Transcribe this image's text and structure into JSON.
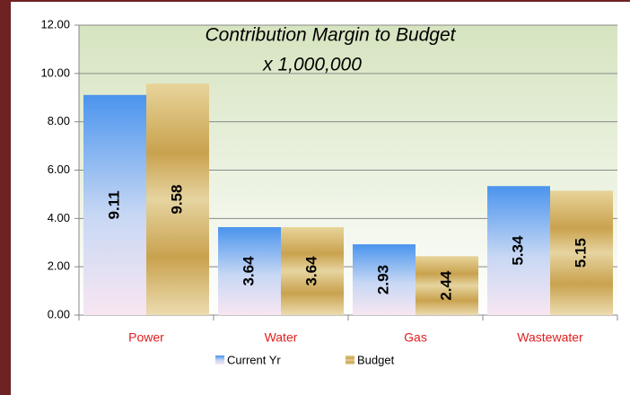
{
  "chart_data": {
    "type": "bar",
    "title": "Contribution Margin to Budget",
    "subtitle": "x 1,000,000",
    "categories": [
      "Power",
      "Water",
      "Gas",
      "Wastewater"
    ],
    "series": [
      {
        "name": "Current Yr",
        "color": "#4a94ee",
        "values": [
          9.11,
          3.64,
          2.93,
          5.34
        ]
      },
      {
        "name": "Budget",
        "color": "#c9a24e",
        "values": [
          9.58,
          3.64,
          2.44,
          5.15
        ]
      }
    ],
    "ylim": [
      0,
      12
    ],
    "yticks": [
      {
        "value": 0,
        "label": "0.00"
      },
      {
        "value": 2,
        "label": "2.00"
      },
      {
        "value": 4,
        "label": "4.00"
      },
      {
        "value": 6,
        "label": "6.00"
      },
      {
        "value": 8,
        "label": "8.00"
      },
      {
        "value": 10,
        "label": "10.00"
      },
      {
        "value": 12,
        "label": "12.00"
      }
    ],
    "grid": true,
    "legend": "bottom"
  }
}
